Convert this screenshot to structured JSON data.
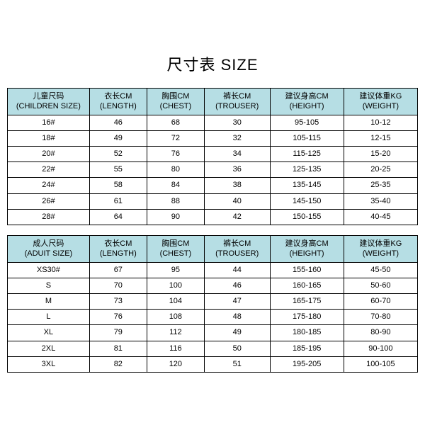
{
  "title": "尺寸表 SIZE",
  "header_bg": "#b6dee4",
  "border_color": "#000000",
  "columns_children": [
    {
      "cn": "儿童尺码",
      "en": "(CHILDREN SIZE)"
    },
    {
      "cn": "衣长CM",
      "en": "(LENGTH)"
    },
    {
      "cn": "胸围CM",
      "en": "(CHEST)"
    },
    {
      "cn": "裤长CM",
      "en": "(TROUSER)"
    },
    {
      "cn": "建议身高CM",
      "en": "(HEIGHT)"
    },
    {
      "cn": "建议体重KG",
      "en": "(WEIGHT)"
    }
  ],
  "rows_children": [
    [
      "16#",
      "46",
      "68",
      "30",
      "95-105",
      "10-12"
    ],
    [
      "18#",
      "49",
      "72",
      "32",
      "105-115",
      "12-15"
    ],
    [
      "20#",
      "52",
      "76",
      "34",
      "115-125",
      "15-20"
    ],
    [
      "22#",
      "55",
      "80",
      "36",
      "125-135",
      "20-25"
    ],
    [
      "24#",
      "58",
      "84",
      "38",
      "135-145",
      "25-35"
    ],
    [
      "26#",
      "61",
      "88",
      "40",
      "145-150",
      "35-40"
    ],
    [
      "28#",
      "64",
      "90",
      "42",
      "150-155",
      "40-45"
    ]
  ],
  "columns_adult": [
    {
      "cn": "成人尺码",
      "en": "(ADUIT SIZE)"
    },
    {
      "cn": "衣长CM",
      "en": "(LENGTH)"
    },
    {
      "cn": "胸围CM",
      "en": "(CHEST)"
    },
    {
      "cn": "裤长CM",
      "en": "(TROUSER)"
    },
    {
      "cn": "建议身高CM",
      "en": "(HEIGHT)"
    },
    {
      "cn": "建议体重KG",
      "en": "(WEIGHT)"
    }
  ],
  "rows_adult": [
    [
      "XS30#",
      "67",
      "95",
      "44",
      "155-160",
      "45-50"
    ],
    [
      "S",
      "70",
      "100",
      "46",
      "160-165",
      "50-60"
    ],
    [
      "M",
      "73",
      "104",
      "47",
      "165-175",
      "60-70"
    ],
    [
      "L",
      "76",
      "108",
      "48",
      "175-180",
      "70-80"
    ],
    [
      "XL",
      "79",
      "112",
      "49",
      "180-185",
      "80-90"
    ],
    [
      "2XL",
      "81",
      "116",
      "50",
      "185-195",
      "90-100"
    ],
    [
      "3XL",
      "82",
      "120",
      "51",
      "195-205",
      "100-105"
    ]
  ]
}
